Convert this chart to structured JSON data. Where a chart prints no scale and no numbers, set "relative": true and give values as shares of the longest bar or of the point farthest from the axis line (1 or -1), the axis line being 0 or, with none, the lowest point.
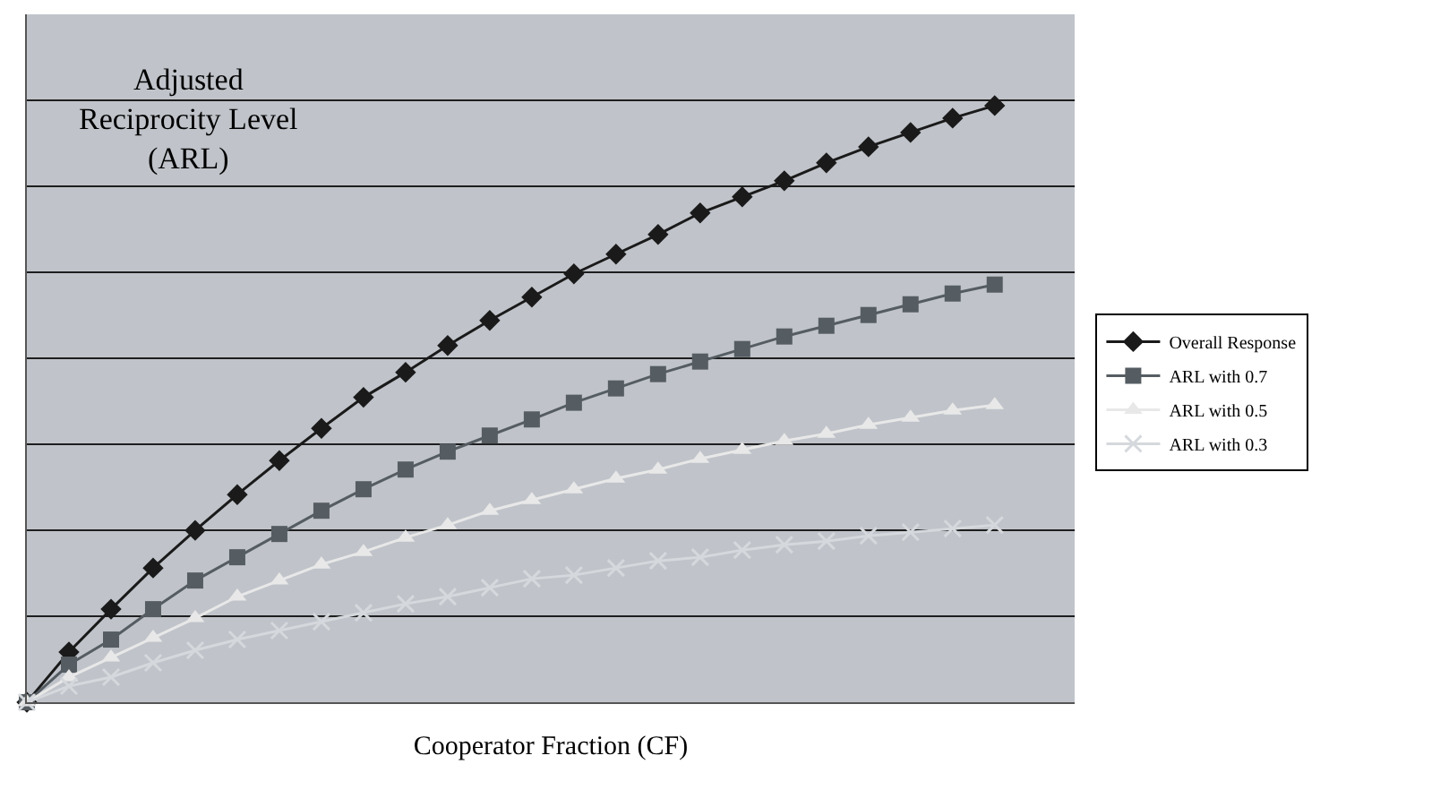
{
  "chart_data": {
    "type": "line",
    "relative": true,
    "ylabel": "Adjusted Reciprocity Level (ARL)",
    "xlabel": "Cooperator Fraction (CF)",
    "grid": "y",
    "legend": "right",
    "categories": [
      null,
      null,
      null,
      null,
      null,
      null,
      null,
      null,
      null,
      null,
      null,
      null,
      null,
      null,
      null,
      null,
      null,
      null,
      null,
      null,
      null,
      null,
      null,
      null
    ],
    "series": [
      {
        "name": "Overall Response",
        "color": "#1a1a1a",
        "marker": "diamond",
        "values": [
          0,
          0.084,
          0.156,
          0.225,
          0.288,
          0.348,
          0.405,
          0.459,
          0.511,
          0.553,
          0.598,
          0.64,
          0.679,
          0.718,
          0.751,
          0.784,
          0.82,
          0.847,
          0.874,
          0.904,
          0.931,
          0.955,
          0.979,
          1
        ]
      },
      {
        "name": "ARL with 0.7",
        "color": "#555d62",
        "marker": "square",
        "values": [
          0,
          0.063,
          0.105,
          0.156,
          0.204,
          0.243,
          0.282,
          0.321,
          0.357,
          0.39,
          0.42,
          0.447,
          0.474,
          0.502,
          0.526,
          0.55,
          0.571,
          0.592,
          0.613,
          0.631,
          0.649,
          0.667,
          0.685,
          0.7
        ]
      },
      {
        "name": "ARL with 0.5",
        "color": "#e8e8e8",
        "marker": "triangle",
        "values": [
          0,
          0.042,
          0.075,
          0.108,
          0.141,
          0.177,
          0.204,
          0.231,
          0.252,
          0.276,
          0.297,
          0.321,
          0.339,
          0.357,
          0.375,
          0.39,
          0.408,
          0.423,
          0.438,
          0.45,
          0.465,
          0.477,
          0.489,
          0.498
        ]
      },
      {
        "name": "ARL with 0.3",
        "color": "#d5d8dc",
        "marker": "cross",
        "values": [
          0,
          0.027,
          0.042,
          0.066,
          0.087,
          0.105,
          0.12,
          0.135,
          0.15,
          0.165,
          0.177,
          0.192,
          0.207,
          0.213,
          0.225,
          0.237,
          0.243,
          0.255,
          0.264,
          0.27,
          0.279,
          0.285,
          0.291,
          0.297
        ]
      }
    ]
  }
}
